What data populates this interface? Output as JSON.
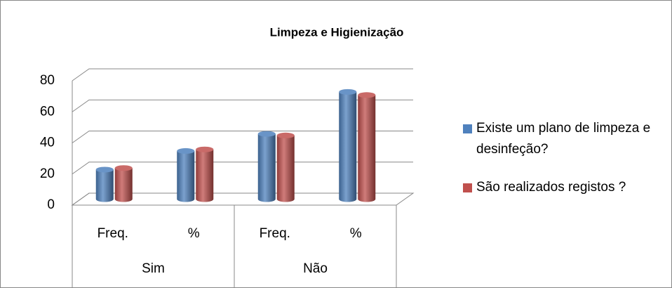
{
  "chart_data": {
    "type": "bar3d",
    "title": "Limpeza e Higienização",
    "categories": [
      "Freq.",
      "%",
      "Freq.",
      "%"
    ],
    "groups": [
      {
        "label": "Sim",
        "categories": [
          "Freq.",
          "%"
        ]
      },
      {
        "label": "Não",
        "categories": [
          "Freq.",
          "%"
        ]
      }
    ],
    "series": [
      {
        "name": "Existe um plano de limpeza e desinfeção?",
        "color": "#4f81bd",
        "values": [
          19,
          31,
          42,
          69
        ]
      },
      {
        "name": "São realizados registos ?",
        "color": "#c0504d",
        "values": [
          20,
          32,
          41,
          67
        ]
      }
    ],
    "ylim": [
      0,
      80
    ],
    "yticks": [
      0,
      20,
      40,
      60,
      80
    ],
    "grid": true,
    "legend": "right"
  }
}
